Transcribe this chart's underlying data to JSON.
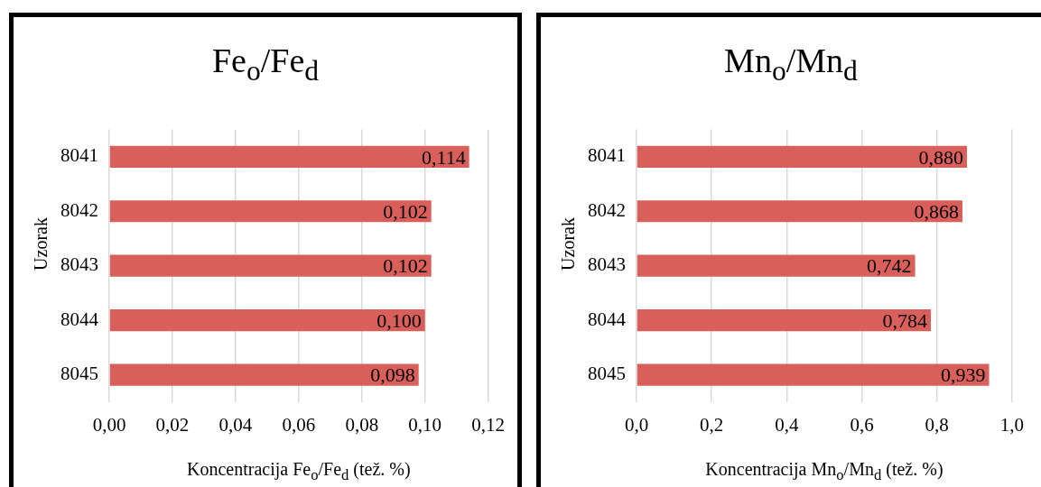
{
  "chart_data": [
    {
      "type": "bar",
      "orientation": "horizontal",
      "title": "Fe$_{o}$/Fe$_{d}$",
      "xlabel": "Koncentracija Fe$_{o}$/Fe$_{d}$ (tež. %)",
      "ylabel": "Uzorak",
      "categories": [
        "8041",
        "8042",
        "8043",
        "8044",
        "8045"
      ],
      "values": [
        0.114,
        0.102,
        0.102,
        0.1,
        0.098
      ],
      "value_labels": [
        "0,114",
        "0,102",
        "0,102",
        "0,100",
        "0,098"
      ],
      "color": "#d95f5b",
      "xlim": [
        0,
        0.12
      ],
      "xticks": [
        {
          "value": 0,
          "label": "0,00"
        },
        {
          "value": 0.02,
          "label": "0,02"
        },
        {
          "value": 0.04,
          "label": "0,04"
        },
        {
          "value": 0.06,
          "label": "0,06"
        },
        {
          "value": 0.08,
          "label": "0,08"
        },
        {
          "value": 0.1,
          "label": "0,10"
        },
        {
          "value": 0.12,
          "label": "0,12"
        }
      ],
      "grid": "x",
      "legend": false
    },
    {
      "type": "bar",
      "orientation": "horizontal",
      "title": "Mn$_{o}$/Mn$_{d}$",
      "xlabel": "Koncentracija Mn$_{o}$/Mn$_{d}$ (tež. %)",
      "ylabel": "Uzorak",
      "categories": [
        "8041",
        "8042",
        "8043",
        "8044",
        "8045"
      ],
      "values": [
        0.88,
        0.868,
        0.742,
        0.784,
        0.939
      ],
      "value_labels": [
        "0,880",
        "0,868",
        "0,742",
        "0,784",
        "0,939"
      ],
      "color": "#d95f5b",
      "xlim": [
        0,
        1.0
      ],
      "xticks": [
        {
          "value": 0,
          "label": "0,0"
        },
        {
          "value": 0.2,
          "label": "0,2"
        },
        {
          "value": 0.4,
          "label": "0,4"
        },
        {
          "value": 0.6,
          "label": "0,6"
        },
        {
          "value": 0.8,
          "label": "0,8"
        },
        {
          "value": 1.0,
          "label": "1,0"
        }
      ],
      "grid": "x",
      "legend": false
    }
  ]
}
